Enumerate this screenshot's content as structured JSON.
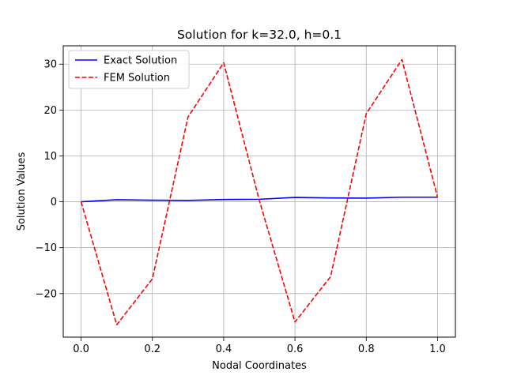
{
  "chart_data": {
    "type": "line",
    "title": "Solution for k=32.0, h=0.1",
    "xlabel": "Nodal Coordinates",
    "ylabel": "Solution Values",
    "xlim": [
      -0.05,
      1.05
    ],
    "ylim": [
      -29.5,
      34.0
    ],
    "xticks": [
      0.0,
      0.2,
      0.4,
      0.6,
      0.8,
      1.0
    ],
    "xtick_labels": [
      "0.0",
      "0.2",
      "0.4",
      "0.6",
      "0.8",
      "1.0"
    ],
    "yticks": [
      -20,
      -10,
      0,
      10,
      20,
      30
    ],
    "ytick_labels": [
      "−20",
      "−10",
      "0",
      "10",
      "20",
      "30"
    ],
    "grid": true,
    "legend_position": "top-left",
    "x": [
      0.0,
      0.1,
      0.2,
      0.3,
      0.4,
      0.5,
      0.6,
      0.7,
      0.8,
      0.9,
      1.0
    ],
    "series": [
      {
        "name": "Exact Solution",
        "color": "#0000ff",
        "style": "solid",
        "values": [
          0.0,
          0.45,
          0.35,
          0.3,
          0.5,
          0.55,
          0.95,
          0.85,
          0.8,
          1.0,
          1.0
        ]
      },
      {
        "name": "FEM Solution",
        "color": "#ff0000",
        "style": "dashed",
        "values": [
          0.0,
          -26.8,
          -16.8,
          18.5,
          30.3,
          0.3,
          -26.2,
          -16.3,
          19.2,
          31.0,
          1.0
        ]
      }
    ]
  }
}
